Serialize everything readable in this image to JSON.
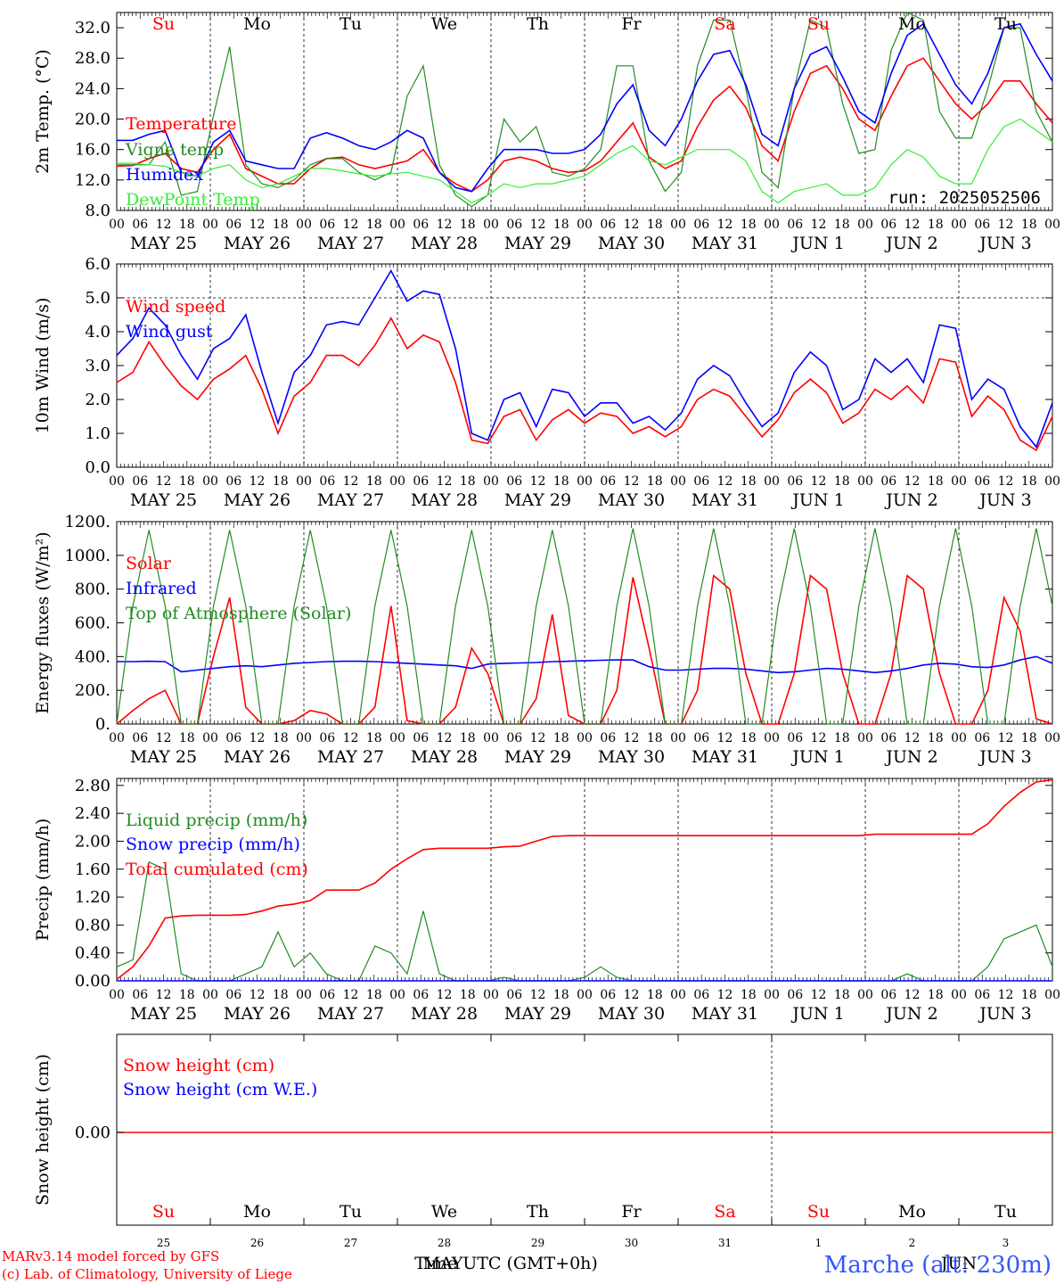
{
  "colors": {
    "red": "#ff0000",
    "green": "#228b22",
    "blue": "#0000ff",
    "lightgreen": "#33ee33",
    "black": "#000000",
    "place": "#3355ff"
  },
  "top_day_labels": [
    "Su",
    "Mo",
    "Tu",
    "We",
    "Th",
    "Fr",
    "Sa",
    "Su",
    "Mo",
    "Tu"
  ],
  "top_day_colors": [
    "red",
    "black",
    "black",
    "black",
    "black",
    "black",
    "red",
    "red",
    "black",
    "black"
  ],
  "hour_ticks": [
    "00",
    "06",
    "12",
    "18"
  ],
  "date_labels": [
    "MAY 25",
    "MAY 26",
    "MAY 27",
    "MAY 28",
    "MAY 29",
    "MAY 30",
    "MAY 31",
    "JUN  1",
    "JUN  2",
    "JUN  3"
  ],
  "panel1": {
    "ylabel": "2m Temp. (°C)",
    "ylim": [
      8,
      34
    ],
    "yticks": [
      "32.0",
      "28.0",
      "24.0",
      "20.0",
      "16.0",
      "12.0",
      "8.0"
    ],
    "run_label": "run: 2025052506",
    "legend": [
      {
        "label": "Temperature",
        "color": "red"
      },
      {
        "label": "Vigne temp",
        "color": "green"
      },
      {
        "label": "Humidex",
        "color": "blue"
      },
      {
        "label": "DewPoint Temp",
        "color": "lightgreen"
      }
    ]
  },
  "panel2": {
    "ylabel": "10m Wind (m/s)",
    "ylim": [
      0,
      6
    ],
    "yticks": [
      "6.0",
      "5.0",
      "4.0",
      "3.0",
      "2.0",
      "1.0",
      "0.0"
    ],
    "legend": [
      {
        "label": "Wind speed",
        "color": "red"
      },
      {
        "label": "Wind gust",
        "color": "blue"
      }
    ]
  },
  "panel3": {
    "ylabel": "Energy fluxes (W/m²)",
    "ylim": [
      0,
      1200
    ],
    "yticks": [
      "1200.",
      "1000.",
      "800.",
      "600.",
      "400.",
      "200.",
      "0."
    ],
    "legend": [
      {
        "label": "Solar",
        "color": "red"
      },
      {
        "label": "Infrared",
        "color": "blue"
      },
      {
        "label": "Top of Atmosphere (Solar)",
        "color": "green"
      }
    ]
  },
  "panel4": {
    "ylabel": "Precip (mm/h)",
    "ylim": [
      0,
      2.9
    ],
    "yticks": [
      "2.80",
      "2.40",
      "2.00",
      "1.60",
      "1.20",
      "0.80",
      "0.40",
      "0.00"
    ],
    "legend": [
      {
        "label": "Liquid precip (mm/h)",
        "color": "green"
      },
      {
        "label": "Snow precip (mm/h)",
        "color": "blue"
      },
      {
        "label": "Total cumulated (cm)",
        "color": "red"
      }
    ]
  },
  "panel5": {
    "ylabel": "Snow height (cm)",
    "yticks": [
      "0.00"
    ],
    "legend": [
      {
        "label": "Snow height (cm)",
        "color": "red"
      },
      {
        "label": "Snow height (cm W.E.)",
        "color": "blue"
      }
    ],
    "bottom_day_labels": [
      "Su",
      "Mo",
      "Tu",
      "We",
      "Th",
      "Fr",
      "Sa",
      "Su",
      "Mo",
      "Tu"
    ],
    "bottom_day_colors": [
      "red",
      "black",
      "black",
      "black",
      "black",
      "black",
      "red",
      "red",
      "black",
      "black"
    ],
    "day_numbers": [
      "25",
      "26",
      "27",
      "28",
      "29",
      "30",
      "31",
      "1",
      "2",
      "3"
    ],
    "month_labels": [
      "MAY",
      "JUN"
    ]
  },
  "footer": {
    "credit_line1": "MARv3.14 model forced by GFS",
    "credit_line2": "(c) Lab. of Climatology, University of Liege",
    "time_label": "Time UTC (GMT+0h)",
    "place": "Marche (alt: 230m)"
  },
  "chart_data": [
    {
      "type": "line",
      "ylabel": "2m Temp. (°C)",
      "ylim": [
        8,
        34
      ],
      "x_start": "2025-05-25 00 UTC",
      "x_step_hours": 6,
      "series": [
        {
          "name": "Temperature",
          "color": "red",
          "values": [
            13.8,
            13.9,
            14.8,
            15.5,
            13.5,
            13.0,
            16.0,
            18.0,
            13.5,
            12.5,
            11.5,
            11.5,
            13.5,
            14.8,
            15.0,
            14.0,
            13.5,
            14.0,
            14.5,
            16.0,
            13.0,
            11.5,
            10.5,
            12.0,
            14.5,
            15.0,
            14.5,
            13.5,
            13.0,
            13.2,
            14.5,
            17.0,
            19.5,
            15.0,
            13.5,
            14.5,
            19.0,
            22.5,
            24.3,
            21.5,
            16.5,
            14.5,
            21.0,
            26.0,
            27.0,
            24.0,
            20.0,
            18.5,
            23.0,
            27.0,
            28.0,
            25.0,
            22.0,
            20.0,
            22.0,
            25.0,
            25.0,
            22.0,
            19.5
          ]
        },
        {
          "name": "Vigne temp",
          "color": "green",
          "values": [
            14.0,
            14.0,
            14.0,
            17.0,
            10.0,
            10.5,
            20.5,
            29.5,
            14.0,
            11.5,
            11.0,
            12.0,
            14.0,
            14.8,
            14.8,
            13.0,
            12.0,
            13.0,
            23.0,
            27.0,
            14.0,
            10.0,
            8.5,
            10.0,
            20.0,
            17.0,
            19.0,
            13.0,
            12.5,
            13.5,
            16.0,
            27.0,
            27.0,
            14.5,
            10.5,
            13.0,
            27.0,
            33.0,
            33.0,
            24.0,
            13.0,
            11.0,
            24.0,
            33.0,
            32.0,
            22.0,
            15.5,
            16.0,
            29.0,
            34.5,
            33.0,
            21.0,
            17.5,
            17.5,
            24.0,
            32.0,
            32.0,
            21.0,
            17.0
          ]
        },
        {
          "name": "Humidex",
          "color": "blue",
          "values": [
            17.2,
            17.2,
            18.0,
            18.5,
            13.0,
            12.5,
            17.0,
            18.5,
            14.5,
            14.0,
            13.5,
            13.5,
            17.5,
            18.2,
            17.5,
            16.5,
            16.0,
            17.0,
            18.5,
            17.5,
            13.0,
            11.0,
            10.5,
            13.5,
            16.0,
            16.0,
            16.0,
            15.5,
            15.5,
            16.0,
            18.0,
            22.0,
            24.5,
            18.5,
            16.5,
            20.0,
            25.0,
            28.5,
            29.0,
            24.5,
            18.0,
            16.5,
            24.0,
            28.5,
            29.5,
            25.5,
            21.0,
            19.5,
            26.0,
            31.0,
            32.5,
            28.5,
            24.5,
            22.0,
            26.0,
            32.0,
            32.5,
            28.5,
            25.0
          ]
        },
        {
          "name": "DewPoint Temp",
          "color": "lightgreen",
          "values": [
            14.2,
            14.2,
            14.0,
            13.8,
            13.0,
            12.5,
            13.5,
            14.0,
            12.0,
            11.0,
            11.5,
            12.5,
            13.5,
            13.5,
            13.2,
            12.8,
            12.5,
            12.8,
            13.0,
            12.5,
            12.0,
            10.5,
            9.0,
            10.0,
            11.5,
            11.0,
            11.5,
            11.5,
            12.0,
            12.5,
            14.0,
            15.5,
            16.5,
            14.5,
            14.0,
            15.0,
            16.0,
            16.0,
            16.0,
            14.5,
            10.5,
            9.0,
            10.5,
            11.0,
            11.5,
            10.0,
            10.0,
            11.0,
            14.0,
            16.0,
            15.0,
            12.5,
            11.5,
            11.5,
            16.0,
            19.0,
            20.0,
            18.5,
            17.0
          ]
        }
      ]
    },
    {
      "type": "line",
      "ylabel": "10m Wind (m/s)",
      "ylim": [
        0,
        6
      ],
      "x_start": "2025-05-25 00 UTC",
      "x_step_hours": 6,
      "series": [
        {
          "name": "Wind speed",
          "color": "red",
          "values": [
            2.5,
            2.8,
            3.7,
            3.0,
            2.4,
            2.0,
            2.6,
            2.9,
            3.3,
            2.3,
            1.0,
            2.1,
            2.5,
            3.3,
            3.3,
            3.0,
            3.6,
            4.4,
            3.5,
            3.9,
            3.7,
            2.5,
            0.8,
            0.7,
            1.5,
            1.7,
            0.8,
            1.4,
            1.7,
            1.3,
            1.6,
            1.5,
            1.0,
            1.2,
            0.9,
            1.2,
            2.0,
            2.3,
            2.1,
            1.5,
            0.9,
            1.4,
            2.2,
            2.6,
            2.2,
            1.3,
            1.6,
            2.3,
            2.0,
            2.4,
            1.9,
            3.2,
            3.1,
            1.5,
            2.1,
            1.7,
            0.8,
            0.5,
            1.5
          ]
        },
        {
          "name": "Wind gust",
          "color": "blue",
          "values": [
            3.3,
            3.8,
            4.7,
            4.2,
            3.3,
            2.6,
            3.5,
            3.8,
            4.5,
            2.8,
            1.3,
            2.8,
            3.3,
            4.2,
            4.3,
            4.2,
            5.0,
            5.8,
            4.9,
            5.2,
            5.1,
            3.5,
            1.0,
            0.8,
            2.0,
            2.2,
            1.2,
            2.3,
            2.2,
            1.5,
            1.9,
            1.9,
            1.3,
            1.5,
            1.1,
            1.6,
            2.6,
            3.0,
            2.7,
            1.9,
            1.2,
            1.6,
            2.8,
            3.4,
            3.0,
            1.7,
            2.0,
            3.2,
            2.8,
            3.2,
            2.5,
            4.2,
            4.1,
            2.0,
            2.6,
            2.3,
            1.2,
            0.6,
            1.9
          ]
        }
      ]
    },
    {
      "type": "line",
      "ylabel": "Energy fluxes (W/m²)",
      "ylim": [
        0,
        1200
      ],
      "x_start": "2025-05-25 00 UTC",
      "x_step_hours": 6,
      "series": [
        {
          "name": "Solar",
          "color": "red",
          "values": [
            0,
            80,
            150,
            200,
            0,
            0,
            400,
            750,
            100,
            0,
            0,
            20,
            80,
            60,
            0,
            0,
            100,
            700,
            20,
            0,
            0,
            100,
            450,
            300,
            0,
            0,
            150,
            650,
            50,
            0,
            0,
            200,
            870,
            450,
            0,
            0,
            200,
            880,
            800,
            300,
            0,
            0,
            300,
            880,
            800,
            300,
            0,
            0,
            300,
            880,
            800,
            300,
            0,
            0,
            200,
            750,
            550,
            30,
            0
          ]
        },
        {
          "name": "Infrared",
          "color": "blue",
          "values": [
            370,
            370,
            372,
            370,
            310,
            320,
            330,
            340,
            345,
            340,
            350,
            360,
            365,
            370,
            372,
            372,
            370,
            365,
            360,
            355,
            350,
            345,
            330,
            355,
            360,
            362,
            365,
            370,
            372,
            375,
            378,
            380,
            380,
            340,
            320,
            320,
            325,
            330,
            330,
            325,
            315,
            305,
            310,
            320,
            330,
            325,
            315,
            305,
            315,
            330,
            350,
            360,
            355,
            340,
            335,
            350,
            380,
            400,
            360
          ]
        },
        {
          "name": "Top of Atmosphere (Solar)",
          "color": "green",
          "values": [
            0,
            700,
            1150,
            700,
            0,
            0,
            700,
            1150,
            700,
            0,
            0,
            700,
            1150,
            700,
            0,
            0,
            700,
            1150,
            700,
            0,
            0,
            700,
            1150,
            700,
            0,
            0,
            700,
            1150,
            700,
            0,
            0,
            700,
            1160,
            700,
            0,
            0,
            700,
            1160,
            700,
            0,
            0,
            700,
            1160,
            700,
            0,
            0,
            700,
            1160,
            700,
            0,
            0,
            700,
            1160,
            700,
            0,
            0,
            700,
            1160,
            700
          ]
        }
      ]
    },
    {
      "type": "line",
      "ylabel": "Precip (mm/h)",
      "ylim": [
        0,
        2.9
      ],
      "x_start": "2025-05-25 00 UTC",
      "x_step_hours": 6,
      "series": [
        {
          "name": "Liquid precip (mm/h)",
          "color": "green",
          "values": [
            0.2,
            0.3,
            1.7,
            1.6,
            0.1,
            0.0,
            0.0,
            0.0,
            0.1,
            0.2,
            0.7,
            0.2,
            0.4,
            0.1,
            0.0,
            0.0,
            0.5,
            0.4,
            0.1,
            1.0,
            0.1,
            0.0,
            0.0,
            0.0,
            0.05,
            0.0,
            0.0,
            0.0,
            0.0,
            0.05,
            0.2,
            0.05,
            0.0,
            0.0,
            0.0,
            0.0,
            0.0,
            0.0,
            0.0,
            0.0,
            0.0,
            0.0,
            0.0,
            0.0,
            0.0,
            0.0,
            0.0,
            0.0,
            0.0,
            0.1,
            0.0,
            0.0,
            0.0,
            0.0,
            0.2,
            0.6,
            0.7,
            0.8,
            0.2
          ]
        },
        {
          "name": "Snow precip (mm/h)",
          "color": "blue",
          "values": [
            0,
            0,
            0,
            0,
            0,
            0,
            0,
            0,
            0,
            0,
            0,
            0,
            0,
            0,
            0,
            0,
            0,
            0,
            0,
            0,
            0,
            0,
            0,
            0,
            0,
            0,
            0,
            0,
            0,
            0,
            0,
            0,
            0,
            0,
            0,
            0,
            0,
            0,
            0,
            0,
            0,
            0,
            0,
            0,
            0,
            0,
            0,
            0,
            0,
            0,
            0,
            0,
            0,
            0,
            0,
            0,
            0,
            0,
            0
          ]
        },
        {
          "name": "Total cumulated (cm)",
          "color": "red",
          "values": [
            0.02,
            0.2,
            0.5,
            0.9,
            0.93,
            0.94,
            0.94,
            0.94,
            0.95,
            1.0,
            1.07,
            1.1,
            1.15,
            1.3,
            1.3,
            1.3,
            1.4,
            1.6,
            1.75,
            1.88,
            1.9,
            1.9,
            1.9,
            1.9,
            1.92,
            1.93,
            2.0,
            2.07,
            2.08,
            2.08,
            2.08,
            2.08,
            2.08,
            2.08,
            2.08,
            2.08,
            2.08,
            2.08,
            2.08,
            2.08,
            2.08,
            2.08,
            2.08,
            2.08,
            2.08,
            2.08,
            2.08,
            2.1,
            2.1,
            2.1,
            2.1,
            2.1,
            2.1,
            2.1,
            2.25,
            2.5,
            2.7,
            2.85,
            2.88
          ]
        }
      ]
    },
    {
      "type": "line",
      "ylabel": "Snow height (cm)",
      "series": [
        {
          "name": "Snow height (cm)",
          "color": "red",
          "values": [
            0,
            0
          ]
        },
        {
          "name": "Snow height (cm W.E.)",
          "color": "blue",
          "values": [
            0,
            0
          ]
        }
      ]
    }
  ]
}
